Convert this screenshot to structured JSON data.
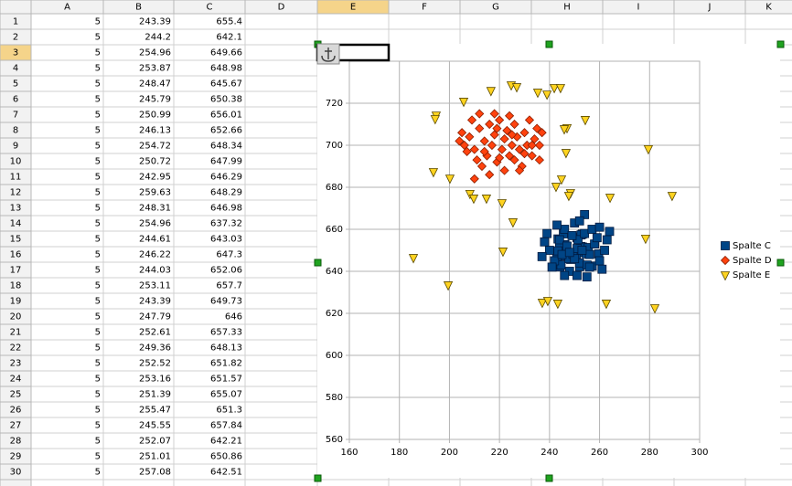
{
  "sheet": {
    "columns": [
      "A",
      "B",
      "C",
      "D",
      "E",
      "F",
      "G",
      "H",
      "I",
      "J",
      "K"
    ],
    "selected_column": 4,
    "selected_row": 2,
    "rows": [
      {
        "label": "1",
        "cells": [
          5,
          243.39,
          655.4
        ]
      },
      {
        "label": "2",
        "cells": [
          5,
          244.2,
          642.1
        ]
      },
      {
        "label": "3",
        "cells": [
          5,
          254.96,
          649.66
        ]
      },
      {
        "label": "4",
        "cells": [
          5,
          253.87,
          648.98
        ]
      },
      {
        "label": "5",
        "cells": [
          5,
          248.47,
          645.67
        ]
      },
      {
        "label": "6",
        "cells": [
          5,
          245.79,
          650.38
        ]
      },
      {
        "label": "7",
        "cells": [
          5,
          250.99,
          656.01
        ]
      },
      {
        "label": "8",
        "cells": [
          5,
          246.13,
          652.66
        ]
      },
      {
        "label": "9",
        "cells": [
          5,
          254.72,
          648.34
        ]
      },
      {
        "label": "10",
        "cells": [
          5,
          250.72,
          647.99
        ]
      },
      {
        "label": "11",
        "cells": [
          5,
          242.95,
          646.29
        ]
      },
      {
        "label": "12",
        "cells": [
          5,
          259.63,
          648.29
        ]
      },
      {
        "label": "13",
        "cells": [
          5,
          248.31,
          646.98
        ]
      },
      {
        "label": "14",
        "cells": [
          5,
          254.96,
          637.32
        ]
      },
      {
        "label": "15",
        "cells": [
          5,
          244.61,
          643.03
        ]
      },
      {
        "label": "16",
        "cells": [
          5,
          246.22,
          647.3
        ]
      },
      {
        "label": "17",
        "cells": [
          5,
          244.03,
          652.06
        ]
      },
      {
        "label": "18",
        "cells": [
          5,
          253.11,
          657.7
        ]
      },
      {
        "label": "19",
        "cells": [
          5,
          243.39,
          649.73
        ]
      },
      {
        "label": "20",
        "cells": [
          5,
          247.79,
          646
        ]
      },
      {
        "label": "21",
        "cells": [
          5,
          252.61,
          657.33
        ]
      },
      {
        "label": "22",
        "cells": [
          5,
          249.36,
          648.13
        ]
      },
      {
        "label": "23",
        "cells": [
          5,
          252.52,
          651.82
        ]
      },
      {
        "label": "24",
        "cells": [
          5,
          253.16,
          651.57
        ]
      },
      {
        "label": "25",
        "cells": [
          5,
          251.39,
          655.07
        ]
      },
      {
        "label": "26",
        "cells": [
          5,
          255.47,
          651.3
        ]
      },
      {
        "label": "27",
        "cells": [
          5,
          245.55,
          657.84
        ]
      },
      {
        "label": "28",
        "cells": [
          5,
          252.07,
          642.21
        ]
      },
      {
        "label": "29",
        "cells": [
          5,
          251.01,
          650.86
        ]
      },
      {
        "label": "30",
        "cells": [
          5,
          257.08,
          642.51
        ]
      }
    ]
  },
  "chart_data": {
    "type": "scatter",
    "grid": true,
    "legend": "right",
    "xlim": [
      160,
      300
    ],
    "xticks": [
      160,
      180,
      200,
      220,
      240,
      260,
      280,
      300
    ],
    "ylim": [
      560,
      740
    ],
    "yticks": [
      560,
      580,
      600,
      620,
      640,
      660,
      680,
      700,
      720
    ],
    "series": [
      {
        "name": "Spalte C",
        "color": "#004586",
        "marker": "square",
        "x": [
          243.39,
          244.2,
          254.96,
          253.87,
          248.47,
          245.79,
          250.99,
          246.13,
          254.72,
          250.72,
          242.95,
          259.63,
          248.31,
          254.96,
          244.61,
          246.22,
          244.03,
          253.11,
          243.39,
          247.79,
          252.61,
          249.36,
          252.52,
          253.16,
          251.39,
          255.47,
          245.55,
          252.07,
          251.01,
          257.08,
          240,
          242,
          244,
          246,
          248,
          250,
          252,
          254,
          256,
          258,
          260,
          262,
          239,
          241,
          243,
          245,
          247,
          249,
          251,
          253,
          255,
          257,
          259,
          261,
          263,
          238,
          264,
          246,
          250,
          254,
          237,
          260,
          252,
          248,
          256
        ],
        "values": [
          655.4,
          642.1,
          649.66,
          648.98,
          645.67,
          650.38,
          656.01,
          652.66,
          648.34,
          647.99,
          646.29,
          648.29,
          646.98,
          637.32,
          643.03,
          647.3,
          652.06,
          657.7,
          649.73,
          646,
          657.33,
          648.13,
          651.82,
          651.57,
          655.07,
          651.3,
          657.84,
          642.21,
          650.86,
          642.51,
          650,
          645,
          655,
          660,
          640,
          663,
          644,
          658,
          648,
          653,
          645,
          650,
          658,
          642,
          662,
          648,
          652,
          657,
          638,
          650,
          643,
          660,
          656,
          641,
          655,
          654,
          659,
          638,
          646,
          667,
          647,
          661,
          664,
          649,
          642
        ]
      },
      {
        "name": "Spalte D",
        "color": "#ff420e",
        "marker": "diamond",
        "x": [
          208,
          210,
          212,
          214,
          215,
          216,
          217,
          218,
          219,
          220,
          221,
          222,
          223,
          224,
          225,
          226,
          227,
          228,
          229,
          230,
          231,
          232,
          233,
          234,
          235,
          213,
          211,
          206,
          205,
          207,
          218,
          224,
          230,
          228,
          222,
          216,
          236,
          209,
          236,
          220,
          226,
          214,
          233,
          219,
          225,
          212,
          237,
          204,
          210
        ],
        "values": [
          704,
          698,
          708,
          702,
          695,
          710,
          700,
          705,
          692,
          712,
          698,
          703,
          707,
          695,
          700,
          710,
          704,
          698,
          690,
          706,
          700,
          712,
          695,
          703,
          708,
          690,
          693,
          700,
          706,
          697,
          715,
          714,
          696,
          688,
          688,
          686,
          700,
          712,
          693,
          694,
          693,
          697,
          700,
          708,
          705,
          715,
          706,
          702,
          684
        ]
      },
      {
        "name": "Spalte E",
        "color": "#ffd320",
        "marker": "triangle",
        "x": [
          194.7,
          194.3,
          205.7,
          216.6,
          224.7,
          226.9,
          235.3,
          239,
          241.9,
          244.4,
          247,
          245.9,
          254.3,
          246.6,
          279.5,
          193.6,
          200.2,
          244.8,
          242.6,
          248.4,
          247.7,
          208.2,
          209.7,
          214.8,
          221,
          264.2,
          289,
          225.4,
          278.4,
          221.4,
          185.6,
          199.5,
          237.1,
          239.3,
          243.3,
          262.7,
          282.1
        ],
        "values": [
          714.3,
          712.6,
          720.9,
          726,
          728.7,
          727.8,
          725.2,
          724.3,
          727.4,
          727.4,
          708.3,
          707.8,
          712.2,
          696.5,
          698.3,
          687.4,
          684.3,
          683.9,
          680.4,
          677.4,
          676.1,
          677,
          674.8,
          674.8,
          672.6,
          675.2,
          676.1,
          663.5,
          655.7,
          649.6,
          646.5,
          633.5,
          625.2,
          626.1,
          624.8,
          624.8,
          622.6
        ]
      }
    ]
  }
}
